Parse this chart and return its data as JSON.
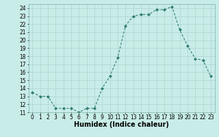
{
  "xlabel": "Humidex (Indice chaleur)",
  "x": [
    0,
    1,
    2,
    3,
    4,
    5,
    6,
    7,
    8,
    9,
    10,
    11,
    12,
    13,
    14,
    15,
    16,
    17,
    18,
    19,
    20,
    21,
    22,
    23
  ],
  "y": [
    13.5,
    13.0,
    13.0,
    11.5,
    11.5,
    11.5,
    11.0,
    11.5,
    11.5,
    14.0,
    15.5,
    17.8,
    21.8,
    23.0,
    23.2,
    23.2,
    23.8,
    23.8,
    24.2,
    21.3,
    19.3,
    17.7,
    17.5,
    15.5
  ],
  "line_color": "#2e7d6e",
  "marker": "D",
  "marker_size": 2.0,
  "background_color": "#c8ece8",
  "grid_color": "#add4ce",
  "ylim": [
    11,
    24.5
  ],
  "xlim": [
    -0.5,
    23.5
  ],
  "yticks": [
    11,
    12,
    13,
    14,
    15,
    16,
    17,
    18,
    19,
    20,
    21,
    22,
    23,
    24
  ],
  "xticks": [
    0,
    1,
    2,
    3,
    4,
    5,
    6,
    7,
    8,
    9,
    10,
    11,
    12,
    13,
    14,
    15,
    16,
    17,
    18,
    19,
    20,
    21,
    22,
    23
  ],
  "tick_labelsize": 5.5,
  "xlabel_fontsize": 7.0
}
